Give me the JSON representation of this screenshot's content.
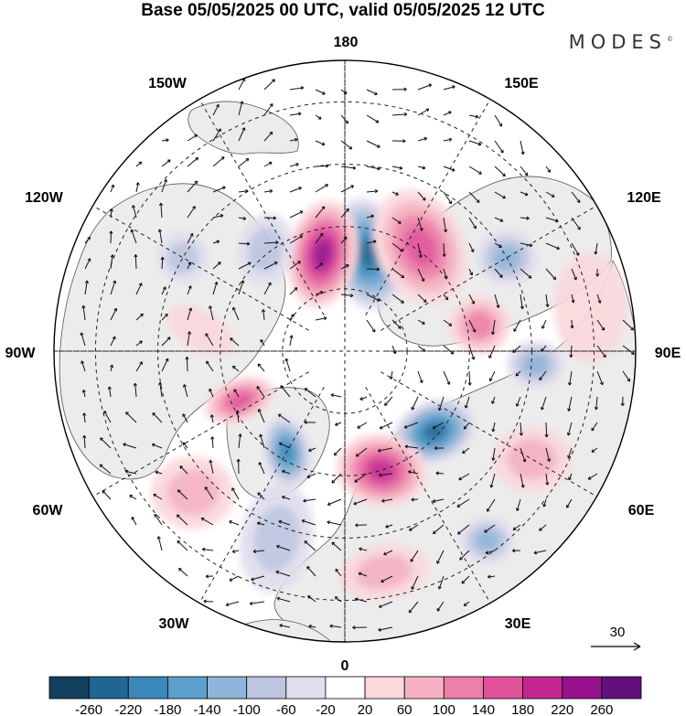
{
  "title": "Base 05/05/2025 00 UTC, valid 05/05/2025 12 UTC",
  "brand": "MODES",
  "brand_mark": "©",
  "meridians": [
    {
      "key": "m180",
      "text": "180"
    },
    {
      "key": "m150w",
      "text": "150W"
    },
    {
      "key": "m150e",
      "text": "150E"
    },
    {
      "key": "m120w",
      "text": "120W"
    },
    {
      "key": "m120e",
      "text": "120E"
    },
    {
      "key": "m90w",
      "text": "90W"
    },
    {
      "key": "m90e",
      "text": "90E"
    },
    {
      "key": "m60w",
      "text": "60W"
    },
    {
      "key": "m60e",
      "text": "60E"
    },
    {
      "key": "m30w",
      "text": "30W"
    },
    {
      "key": "m30e",
      "text": "30E"
    },
    {
      "key": "m0",
      "text": "0"
    }
  ],
  "reference_vector": {
    "value": "30"
  },
  "colorbar": {
    "ticks": [
      "-260",
      "-220",
      "-180",
      "-140",
      "-100",
      "-60",
      "-20",
      "20",
      "60",
      "100",
      "140",
      "180",
      "220",
      "260"
    ],
    "colors": [
      "#14405f",
      "#1f6693",
      "#3a87ba",
      "#5c9fcc",
      "#8eb4d8",
      "#bdc5e0",
      "#e0deed",
      "#ffffff",
      "#fad8dc",
      "#f5b1c1",
      "#ee7fa8",
      "#e2529a",
      "#c42690",
      "#97118c",
      "#61107c"
    ]
  },
  "anomalies": [
    {
      "lon": 167,
      "lat": 66,
      "rx": 40,
      "ry": 62,
      "rot": -10,
      "value": -230
    },
    {
      "lon": 193,
      "lat": 66,
      "rx": 38,
      "ry": 60,
      "rot": 10,
      "value": 230
    },
    {
      "lon": 144,
      "lat": 59,
      "rx": 48,
      "ry": 66,
      "rot": -25,
      "value": 150
    },
    {
      "lon": 120,
      "lat": 45,
      "rx": 34,
      "ry": 30,
      "rot": 0,
      "value": -130
    },
    {
      "lon": 101,
      "lat": 57,
      "rx": 34,
      "ry": 32,
      "rot": 0,
      "value": 110
    },
    {
      "lon": 86,
      "lat": 44,
      "rx": 32,
      "ry": 26,
      "rot": 0,
      "value": -100
    },
    {
      "lon": 48,
      "lat": 61,
      "rx": 46,
      "ry": 34,
      "rot": -20,
      "value": -230
    },
    {
      "lon": 17,
      "lat": 60,
      "rx": 50,
      "ry": 40,
      "rot": 10,
      "value": 180
    },
    {
      "lon": 330,
      "lat": 62,
      "rx": 26,
      "ry": 40,
      "rot": -10,
      "value": -200
    },
    {
      "lon": 295,
      "lat": 62,
      "rx": 40,
      "ry": 24,
      "rot": -20,
      "value": 150
    },
    {
      "lon": 218,
      "lat": 59,
      "rx": 30,
      "ry": 40,
      "rot": 10,
      "value": -90
    },
    {
      "lon": 240,
      "lat": 45,
      "rx": 28,
      "ry": 28,
      "rot": 0,
      "value": -60
    },
    {
      "lon": 37,
      "lat": 33,
      "rx": 30,
      "ry": 26,
      "rot": 0,
      "value": -110
    },
    {
      "lon": 60,
      "lat": 38,
      "rx": 44,
      "ry": 36,
      "rot": 0,
      "value": 60
    },
    {
      "lon": 340,
      "lat": 42,
      "rx": 40,
      "ry": 60,
      "rot": 10,
      "value": -70
    },
    {
      "lon": 10,
      "lat": 36,
      "rx": 50,
      "ry": 30,
      "rot": -10,
      "value": 60
    },
    {
      "lon": 313,
      "lat": 40,
      "rx": 46,
      "ry": 40,
      "rot": 0,
      "value": 60
    },
    {
      "lon": 262,
      "lat": 55,
      "rx": 40,
      "ry": 22,
      "rot": 30,
      "value": 50
    },
    {
      "lon": 100,
      "lat": 30,
      "rx": 40,
      "ry": 60,
      "rot": 0,
      "value": 40
    }
  ]
}
